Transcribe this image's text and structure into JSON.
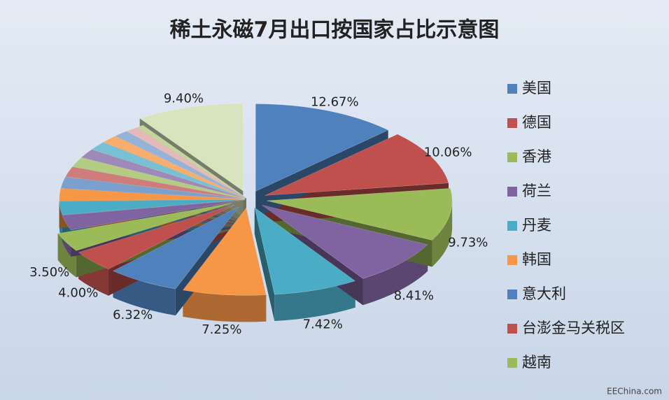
{
  "chart_data": {
    "type": "pie3d",
    "title": "稀土永磁7月出口按国家占比示意图",
    "categories": [
      "美国",
      "德国",
      "香港",
      "荷兰",
      "丹麦",
      "韩国",
      "意大利",
      "台澎金马关税区",
      "越南",
      null,
      null,
      null,
      null,
      null,
      null,
      null,
      null,
      null,
      null,
      null,
      null,
      null
    ],
    "values": [
      12.67,
      10.06,
      9.73,
      8.41,
      7.42,
      7.25,
      6.32,
      4.0,
      3.5,
      2.8,
      2.5,
      2.3,
      2.1,
      1.9,
      1.8,
      1.7,
      1.6,
      1.5,
      1.3,
      1.1,
      0.64,
      9.4
    ],
    "value_labels": [
      "12.67%",
      "10.06%",
      "9.73%",
      "8.41%",
      "7.42%",
      "7.25%",
      "6.32%",
      "4.00%",
      "3.50%",
      null,
      null,
      null,
      null,
      null,
      null,
      null,
      null,
      null,
      null,
      null,
      null,
      "9.40%"
    ],
    "colors": [
      "#4f81bd",
      "#c0504d",
      "#9bbb59",
      "#8064a2",
      "#4bacc6",
      "#f79646",
      "#4f81bd",
      "#c0504d",
      "#9bbb59",
      "#8064a2",
      "#4bacc6",
      "#f79646",
      "#7ba0cd",
      "#d07c7a",
      "#b3cc82",
      "#9e8ab8",
      "#78c0d4",
      "#f9ad6d",
      "#95b3d7",
      "#e6b9b8",
      "#c3d69b",
      "#d7e4bd"
    ],
    "watermark": "EEChina.com"
  }
}
